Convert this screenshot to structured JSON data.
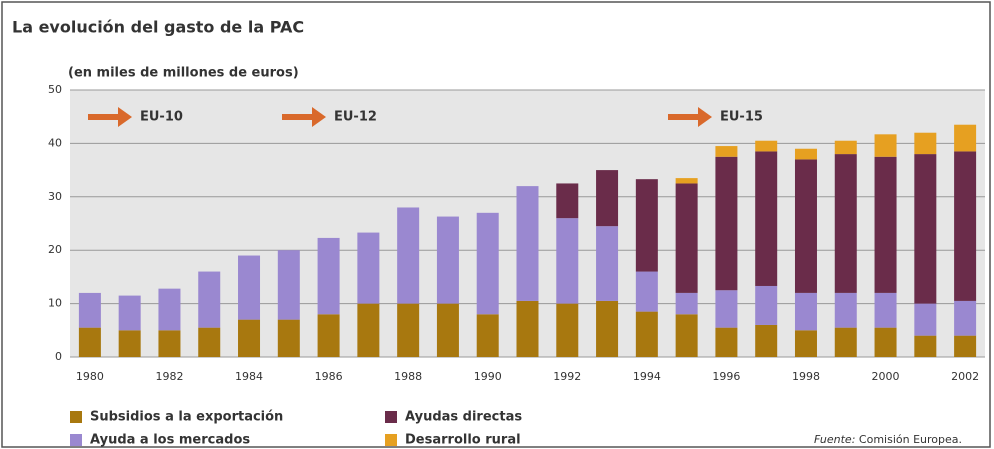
{
  "chart_data": {
    "type": "stacked_bar",
    "title": "La evolución del gasto de la PAC",
    "subtitle": "(en miles de millones de euros)",
    "annotations": [
      "EU-10",
      "EU-12",
      "EU-15"
    ],
    "source_label": "Fuente:",
    "source": "Comisión Europea.",
    "categories": [
      "1980",
      null,
      "1982",
      null,
      "1984",
      null,
      "1986",
      null,
      "1988",
      null,
      "1990",
      null,
      "1992",
      null,
      "1994",
      null,
      "1996",
      null,
      "1998",
      null,
      "2000",
      null,
      "2002"
    ],
    "series": [
      {
        "name": "Subsidios a la exportación",
        "color": "#a8780f",
        "values": [
          5.5,
          5,
          5,
          5.5,
          7,
          7,
          8,
          10,
          10,
          10,
          8,
          10.5,
          10,
          10.5,
          8.5,
          8,
          5.5,
          6,
          5,
          5.5,
          5.5,
          4,
          4
        ]
      },
      {
        "name": "Ayuda a los mercados",
        "color": "#9a88d0",
        "values": [
          6.5,
          6.5,
          7.8,
          10.5,
          12,
          13,
          14.3,
          13.3,
          18,
          16.3,
          19,
          21.5,
          16,
          14,
          7.5,
          4,
          7,
          7.3,
          7,
          6.5,
          6.5,
          6,
          6.5
        ]
      },
      {
        "name": "Ayudas directas",
        "color": "#6a2c4a",
        "values": [
          null,
          null,
          null,
          null,
          null,
          null,
          null,
          null,
          null,
          null,
          null,
          null,
          6.5,
          10.5,
          17.3,
          20.5,
          25,
          25.2,
          25,
          26,
          25.5,
          28,
          28
        ]
      },
      {
        "name": "Desarrollo rural",
        "color": "#e6a021",
        "values": [
          null,
          null,
          null,
          null,
          null,
          null,
          null,
          null,
          null,
          null,
          null,
          null,
          null,
          null,
          null,
          1,
          2,
          2,
          2,
          2.5,
          4.2,
          4,
          5
        ]
      }
    ],
    "ylim": [
      0,
      50
    ],
    "yticks": [
      0,
      10,
      20,
      30,
      40,
      50
    ],
    "grid": true,
    "legend": "bottom-left"
  }
}
